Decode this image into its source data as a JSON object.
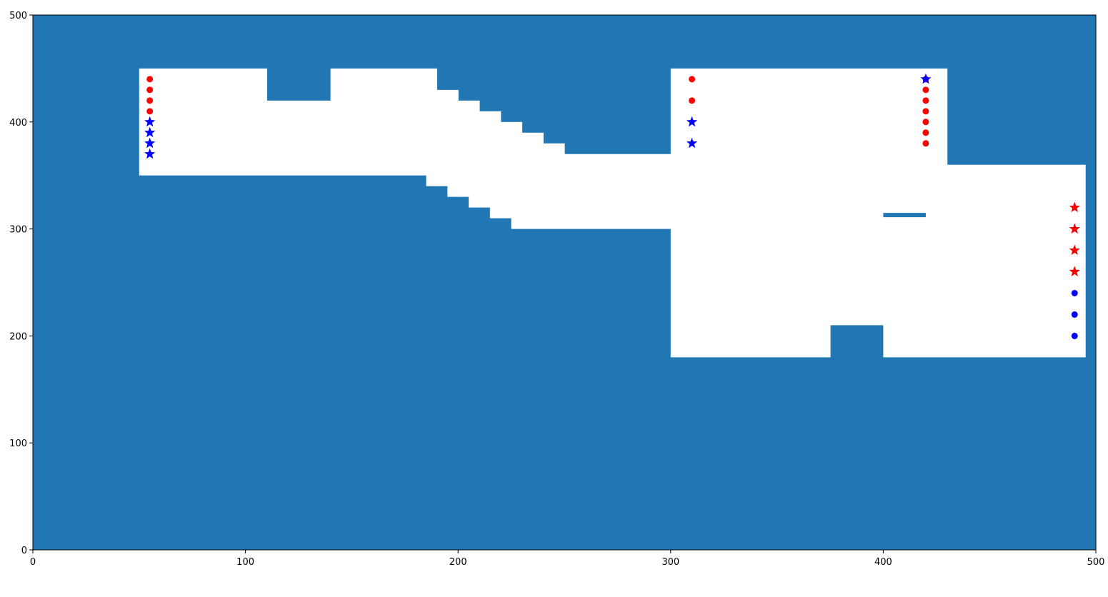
{
  "chart_data": {
    "type": "scatter",
    "title": "",
    "xlabel": "",
    "ylabel": "",
    "xlim": [
      0,
      500
    ],
    "ylim": [
      0,
      500
    ],
    "grid": false,
    "x_ticks": [
      0,
      100,
      200,
      300,
      400,
      500
    ],
    "y_ticks": [
      0,
      100,
      200,
      300,
      400,
      500
    ],
    "colors": {
      "obstacle": "#2077b4",
      "free": "#ffffff",
      "red": "#ff0000",
      "blue": "#0000ff"
    },
    "free_space_cells": [
      {
        "x": [
          50,
          110
        ],
        "y": [
          350,
          450
        ]
      },
      {
        "x": [
          110,
          140
        ],
        "y": [
          350,
          420
        ]
      },
      {
        "x": [
          140,
          185
        ],
        "y": [
          350,
          450
        ]
      },
      {
        "x": [
          185,
          190
        ],
        "y": [
          340,
          450
        ]
      },
      {
        "x": [
          190,
          195
        ],
        "y": [
          340,
          430
        ]
      },
      {
        "x": [
          195,
          200
        ],
        "y": [
          330,
          430
        ]
      },
      {
        "x": [
          200,
          205
        ],
        "y": [
          330,
          420
        ]
      },
      {
        "x": [
          205,
          210
        ],
        "y": [
          320,
          420
        ]
      },
      {
        "x": [
          210,
          215
        ],
        "y": [
          320,
          410
        ]
      },
      {
        "x": [
          215,
          220
        ],
        "y": [
          310,
          410
        ]
      },
      {
        "x": [
          220,
          225
        ],
        "y": [
          310,
          400
        ]
      },
      {
        "x": [
          225,
          230
        ],
        "y": [
          300,
          400
        ]
      },
      {
        "x": [
          230,
          240
        ],
        "y": [
          300,
          390
        ]
      },
      {
        "x": [
          240,
          250
        ],
        "y": [
          300,
          380
        ]
      },
      {
        "x": [
          250,
          300
        ],
        "y": [
          300,
          370
        ]
      },
      {
        "x": [
          300,
          375
        ],
        "y": [
          180,
          450
        ]
      },
      {
        "x": [
          375,
          400
        ],
        "y": [
          210,
          450
        ]
      },
      {
        "x": [
          400,
          430
        ],
        "y": [
          180,
          450
        ]
      },
      {
        "x": [
          430,
          495
        ],
        "y": [
          180,
          360
        ]
      }
    ],
    "obstacle_patches": [
      {
        "x": [
          400,
          420
        ],
        "y": [
          311,
          315
        ]
      }
    ],
    "series": [
      {
        "color": "red",
        "marker": "circle",
        "points": [
          [
            55,
            440
          ],
          [
            55,
            430
          ],
          [
            55,
            420
          ],
          [
            55,
            410
          ],
          [
            310,
            440
          ],
          [
            310,
            420
          ],
          [
            420,
            440
          ],
          [
            420,
            430
          ],
          [
            420,
            420
          ],
          [
            420,
            410
          ],
          [
            420,
            400
          ],
          [
            420,
            390
          ],
          [
            420,
            380
          ]
        ]
      },
      {
        "color": "blue",
        "marker": "star",
        "points": [
          [
            55,
            400
          ],
          [
            55,
            390
          ],
          [
            55,
            380
          ],
          [
            55,
            370
          ],
          [
            310,
            400
          ],
          [
            310,
            380
          ],
          [
            420,
            440
          ]
        ]
      },
      {
        "color": "red",
        "marker": "star",
        "points": [
          [
            490,
            320
          ],
          [
            490,
            300
          ],
          [
            490,
            280
          ],
          [
            490,
            260
          ]
        ]
      },
      {
        "color": "blue",
        "marker": "circle",
        "points": [
          [
            490,
            240
          ],
          [
            490,
            220
          ],
          [
            490,
            200
          ]
        ]
      }
    ]
  }
}
